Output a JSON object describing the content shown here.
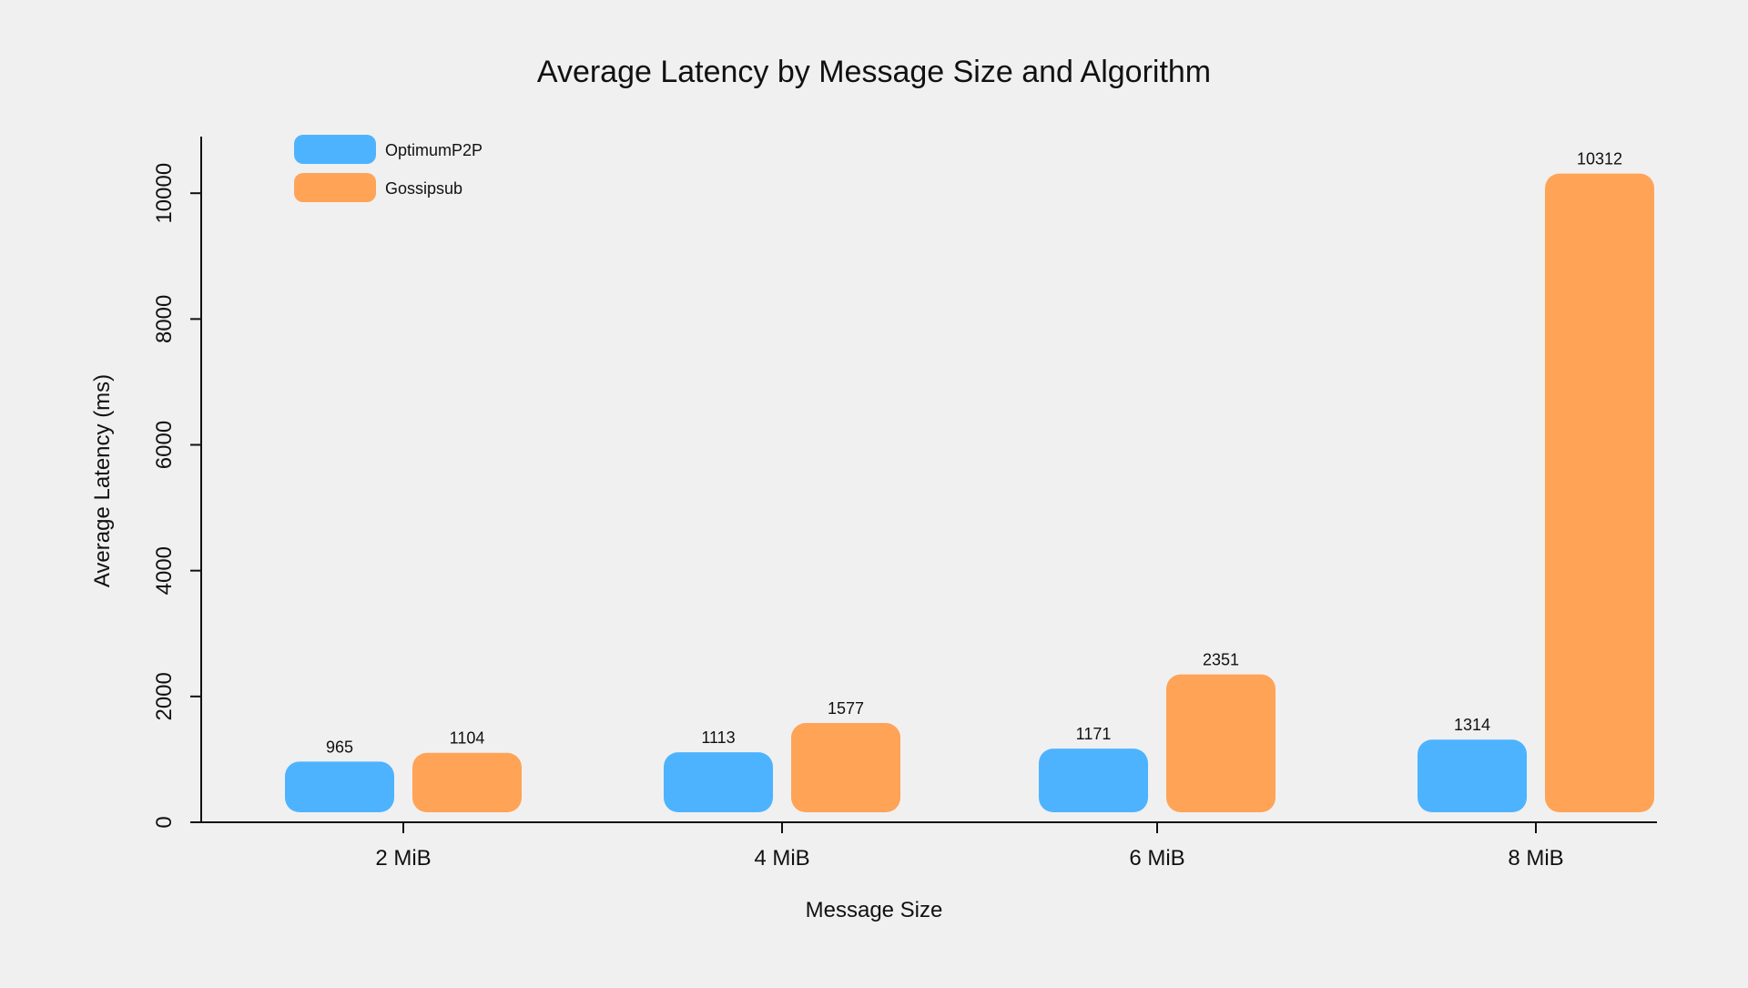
{
  "chart_data": {
    "type": "bar",
    "title": "Average Latency by Message Size and Algorithm",
    "xlabel": "Message Size",
    "ylabel": "Average Latency (ms)",
    "categories": [
      "2 MiB",
      "4 MiB",
      "6 MiB",
      "8 MiB"
    ],
    "series": [
      {
        "name": "OptimumP2P",
        "color": "#4db3ff",
        "values": [
          965,
          1113,
          1171,
          1314
        ]
      },
      {
        "name": "Gossipsub",
        "color": "#ffa357",
        "values": [
          1104,
          1577,
          2351,
          10312
        ]
      }
    ],
    "ylim": [
      0,
      10900
    ],
    "yticks": [
      0,
      2000,
      4000,
      6000,
      8000,
      10000
    ],
    "ytick_labels": [
      "0",
      "2000",
      "4000",
      "6000",
      "8000",
      "10000"
    ],
    "grid": false,
    "legend": "top-left",
    "background": "#f0f0f0"
  }
}
